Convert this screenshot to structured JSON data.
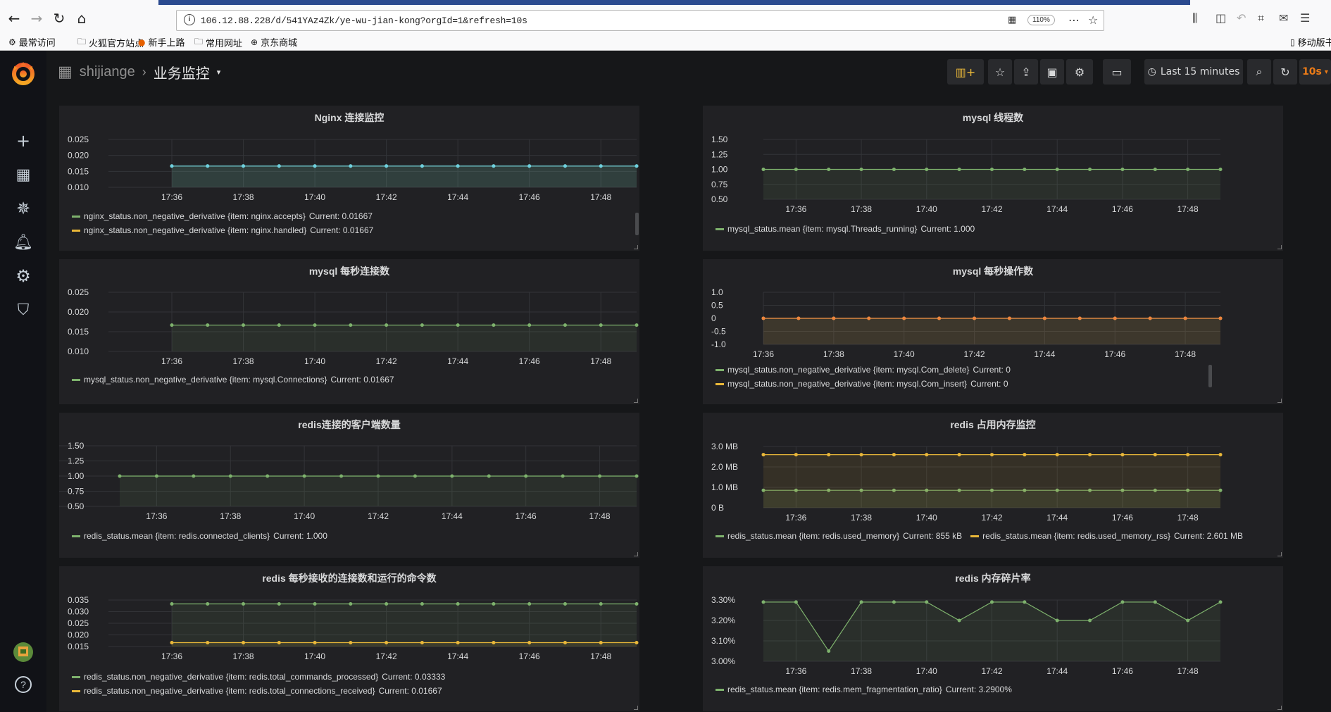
{
  "browser": {
    "url": "106.12.88.228/d/541YAz4Zk/ye-wu-jian-kong?orgId=1&refresh=10s",
    "zoom": "110%",
    "bookmarks": [
      "最常访问",
      "火狐官方站点",
      "新手上路",
      "常用网址",
      "京东商城"
    ],
    "mobile_bookmarks": "移动版书"
  },
  "dashboard": {
    "folder": "shijiange",
    "title": "业务监控",
    "time_range": "Last 15 minutes",
    "refresh": "10s"
  },
  "x_ticks": [
    "17:36",
    "17:38",
    "17:40",
    "17:42",
    "17:44",
    "17:46",
    "17:48"
  ],
  "panels": [
    {
      "title": "Nginx 连接监控",
      "y_ticks": [
        "0.025",
        "0.020",
        "0.015",
        "0.010"
      ],
      "legend": [
        {
          "label": "nginx_status.non_negative_derivative {item: nginx.accepts}",
          "current": "Current: 0.01667",
          "color": "#7eb26d"
        },
        {
          "label": "nginx_status.non_negative_derivative {item: nginx.handled}",
          "current": "Current: 0.01667",
          "color": "#eab839"
        }
      ]
    },
    {
      "title": "mysql 线程数",
      "y_ticks": [
        "1.50",
        "1.25",
        "1.00",
        "0.75",
        "0.50"
      ],
      "legend": [
        {
          "label": "mysql_status.mean {item: mysql.Threads_running}",
          "current": "Current: 1.000",
          "color": "#7eb26d"
        }
      ]
    },
    {
      "title": "mysql 每秒连接数",
      "y_ticks": [
        "0.025",
        "0.020",
        "0.015",
        "0.010"
      ],
      "legend": [
        {
          "label": "mysql_status.non_negative_derivative {item: mysql.Connections}",
          "current": "Current: 0.01667",
          "color": "#7eb26d"
        }
      ]
    },
    {
      "title": "mysql 每秒操作数",
      "y_ticks": [
        "1.0",
        "0.5",
        "0",
        "-0.5",
        "-1.0"
      ],
      "legend": [
        {
          "label": "mysql_status.non_negative_derivative {item: mysql.Com_delete}",
          "current": "Current: 0",
          "color": "#7eb26d"
        },
        {
          "label": "mysql_status.non_negative_derivative {item: mysql.Com_insert}",
          "current": "Current: 0",
          "color": "#eab839"
        }
      ]
    },
    {
      "title": "redis连接的客户端数量",
      "y_ticks": [
        "1.50",
        "1.25",
        "1.00",
        "0.75",
        "0.50"
      ],
      "legend": [
        {
          "label": "redis_status.mean {item: redis.connected_clients}",
          "current": "Current: 1.000",
          "color": "#7eb26d"
        }
      ]
    },
    {
      "title": "redis 占用内存监控",
      "y_ticks": [
        "3.0 MB",
        "2.0 MB",
        "1.0 MB",
        "0 B"
      ],
      "legend": [
        {
          "label": "redis_status.mean {item: redis.used_memory}",
          "current": "Current: 855 kB",
          "color": "#7eb26d"
        },
        {
          "label": "redis_status.mean {item: redis.used_memory_rss}",
          "current": "Current: 2.601 MB",
          "color": "#eab839"
        }
      ]
    },
    {
      "title": "redis 每秒接收的连接数和运行的命令数",
      "y_ticks": [
        "0.035",
        "0.030",
        "0.025",
        "0.020",
        "0.015"
      ],
      "legend": [
        {
          "label": "redis_status.non_negative_derivative {item: redis.total_commands_processed}",
          "current": "Current: 0.03333",
          "color": "#7eb26d"
        },
        {
          "label": "redis_status.non_negative_derivative {item: redis.total_connections_received}",
          "current": "Current: 0.01667",
          "color": "#eab839"
        }
      ]
    },
    {
      "title": "redis 内存碎片率",
      "y_ticks": [
        "3.30%",
        "3.20%",
        "3.10%",
        "3.00%"
      ],
      "legend": [
        {
          "label": "redis_status.mean {item: redis.mem_fragmentation_ratio}",
          "current": "Current: 3.2900%",
          "color": "#7eb26d"
        }
      ]
    }
  ],
  "chart_data": [
    {
      "type": "line",
      "title": "Nginx 连接监控",
      "x": [
        "17:36",
        "17:37",
        "17:38",
        "17:39",
        "17:40",
        "17:41",
        "17:42",
        "17:43",
        "17:44",
        "17:45",
        "17:46",
        "17:47",
        "17:48",
        "17:49"
      ],
      "ylim": [
        0.01,
        0.025
      ],
      "series": [
        {
          "name": "nginx_status.non_negative_derivative {item: nginx.accepts}",
          "color": "#7eb26d",
          "values": [
            0.01667,
            0.01667,
            0.01667,
            0.01667,
            0.01667,
            0.01667,
            0.01667,
            0.01667,
            0.01667,
            0.01667,
            0.01667,
            0.01667,
            0.01667,
            0.01667
          ]
        },
        {
          "name": "nginx_status.non_negative_derivative {item: nginx.handled}",
          "color": "#6ed0e0",
          "values": [
            0.01667,
            0.01667,
            0.01667,
            0.01667,
            0.01667,
            0.01667,
            0.01667,
            0.01667,
            0.01667,
            0.01667,
            0.01667,
            0.01667,
            0.01667,
            0.01667
          ]
        }
      ]
    },
    {
      "type": "line",
      "title": "mysql 线程数",
      "x": [
        "17:35",
        "17:36",
        "17:37",
        "17:38",
        "17:39",
        "17:40",
        "17:41",
        "17:42",
        "17:43",
        "17:44",
        "17:45",
        "17:46",
        "17:47",
        "17:48",
        "17:49"
      ],
      "ylim": [
        0.5,
        1.5
      ],
      "series": [
        {
          "name": "mysql_status.mean {item: mysql.Threads_running}",
          "color": "#7eb26d",
          "values": [
            1,
            1,
            1,
            1,
            1,
            1,
            1,
            1,
            1,
            1,
            1,
            1,
            1,
            1,
            1
          ]
        }
      ]
    },
    {
      "type": "line",
      "title": "mysql 每秒连接数",
      "x": [
        "17:36",
        "17:37",
        "17:38",
        "17:39",
        "17:40",
        "17:41",
        "17:42",
        "17:43",
        "17:44",
        "17:45",
        "17:46",
        "17:47",
        "17:48",
        "17:49"
      ],
      "ylim": [
        0.01,
        0.025
      ],
      "series": [
        {
          "name": "mysql_status.non_negative_derivative {item: mysql.Connections}",
          "color": "#7eb26d",
          "values": [
            0.01667,
            0.01667,
            0.01667,
            0.01667,
            0.01667,
            0.01667,
            0.01667,
            0.01667,
            0.01667,
            0.01667,
            0.01667,
            0.01667,
            0.01667,
            0.01667
          ]
        }
      ]
    },
    {
      "type": "line",
      "title": "mysql 每秒操作数",
      "x": [
        "17:36",
        "17:37",
        "17:38",
        "17:39",
        "17:40",
        "17:41",
        "17:42",
        "17:43",
        "17:44",
        "17:45",
        "17:46",
        "17:47",
        "17:48",
        "17:49"
      ],
      "ylim": [
        -1,
        1
      ],
      "series": [
        {
          "name": "mysql_status.non_negative_derivative {item: mysql.Com_delete}",
          "color": "#7eb26d",
          "values": [
            0,
            0,
            0,
            0,
            0,
            0,
            0,
            0,
            0,
            0,
            0,
            0,
            0,
            0
          ]
        },
        {
          "name": "mysql_status.non_negative_derivative {item: mysql.Com_insert}",
          "color": "#ef843c",
          "values": [
            0,
            0,
            0,
            0,
            0,
            0,
            0,
            0,
            0,
            0,
            0,
            0,
            0,
            0
          ]
        }
      ]
    },
    {
      "type": "line",
      "title": "redis连接的客户端数量",
      "x": [
        "17:35",
        "17:36",
        "17:37",
        "17:38",
        "17:39",
        "17:40",
        "17:41",
        "17:42",
        "17:43",
        "17:44",
        "17:45",
        "17:46",
        "17:47",
        "17:48",
        "17:49"
      ],
      "ylim": [
        0.5,
        1.5
      ],
      "series": [
        {
          "name": "redis_status.mean {item: redis.connected_clients}",
          "color": "#7eb26d",
          "values": [
            1,
            1,
            1,
            1,
            1,
            1,
            1,
            1,
            1,
            1,
            1,
            1,
            1,
            1,
            1
          ]
        }
      ]
    },
    {
      "type": "line",
      "title": "redis 占用内存监控",
      "x": [
        "17:35",
        "17:36",
        "17:37",
        "17:38",
        "17:39",
        "17:40",
        "17:41",
        "17:42",
        "17:43",
        "17:44",
        "17:45",
        "17:46",
        "17:47",
        "17:48",
        "17:49"
      ],
      "ylim": [
        0,
        3.0
      ],
      "series": [
        {
          "name": "redis_status.mean {item: redis.used_memory}",
          "color": "#7eb26d",
          "values": [
            0.855,
            0.855,
            0.855,
            0.855,
            0.855,
            0.855,
            0.855,
            0.855,
            0.855,
            0.855,
            0.855,
            0.855,
            0.855,
            0.855,
            0.855
          ]
        },
        {
          "name": "redis_status.mean {item: redis.used_memory_rss}",
          "color": "#eab839",
          "values": [
            2.601,
            2.601,
            2.601,
            2.601,
            2.601,
            2.601,
            2.601,
            2.601,
            2.601,
            2.601,
            2.601,
            2.601,
            2.601,
            2.601,
            2.601
          ]
        }
      ]
    },
    {
      "type": "line",
      "title": "redis 每秒接收的连接数和运行的命令数",
      "x": [
        "17:36",
        "17:37",
        "17:38",
        "17:39",
        "17:40",
        "17:41",
        "17:42",
        "17:43",
        "17:44",
        "17:45",
        "17:46",
        "17:47",
        "17:48",
        "17:49"
      ],
      "ylim": [
        0.015,
        0.035
      ],
      "series": [
        {
          "name": "redis_status.non_negative_derivative {item: redis.total_commands_processed}",
          "color": "#7eb26d",
          "values": [
            0.03333,
            0.03333,
            0.03333,
            0.03333,
            0.03333,
            0.03333,
            0.03333,
            0.03333,
            0.03333,
            0.03333,
            0.03333,
            0.03333,
            0.03333,
            0.03333
          ]
        },
        {
          "name": "redis_status.non_negative_derivative {item: redis.total_connections_received}",
          "color": "#eab839",
          "values": [
            0.01667,
            0.01667,
            0.01667,
            0.01667,
            0.01667,
            0.01667,
            0.01667,
            0.01667,
            0.01667,
            0.01667,
            0.01667,
            0.01667,
            0.01667,
            0.01667
          ]
        }
      ]
    },
    {
      "type": "line",
      "title": "redis 内存碎片率",
      "x": [
        "17:35",
        "17:36",
        "17:37",
        "17:38",
        "17:39",
        "17:40",
        "17:41",
        "17:42",
        "17:43",
        "17:44",
        "17:45",
        "17:46",
        "17:47",
        "17:48",
        "17:49"
      ],
      "ylim": [
        3.0,
        3.3
      ],
      "series": [
        {
          "name": "redis_status.mean {item: redis.mem_fragmentation_ratio}",
          "color": "#7eb26d",
          "values": [
            3.29,
            3.29,
            3.05,
            3.29,
            3.29,
            3.29,
            3.2,
            3.29,
            3.29,
            3.2,
            3.2,
            3.29,
            3.29,
            3.2,
            3.29
          ]
        }
      ]
    }
  ]
}
